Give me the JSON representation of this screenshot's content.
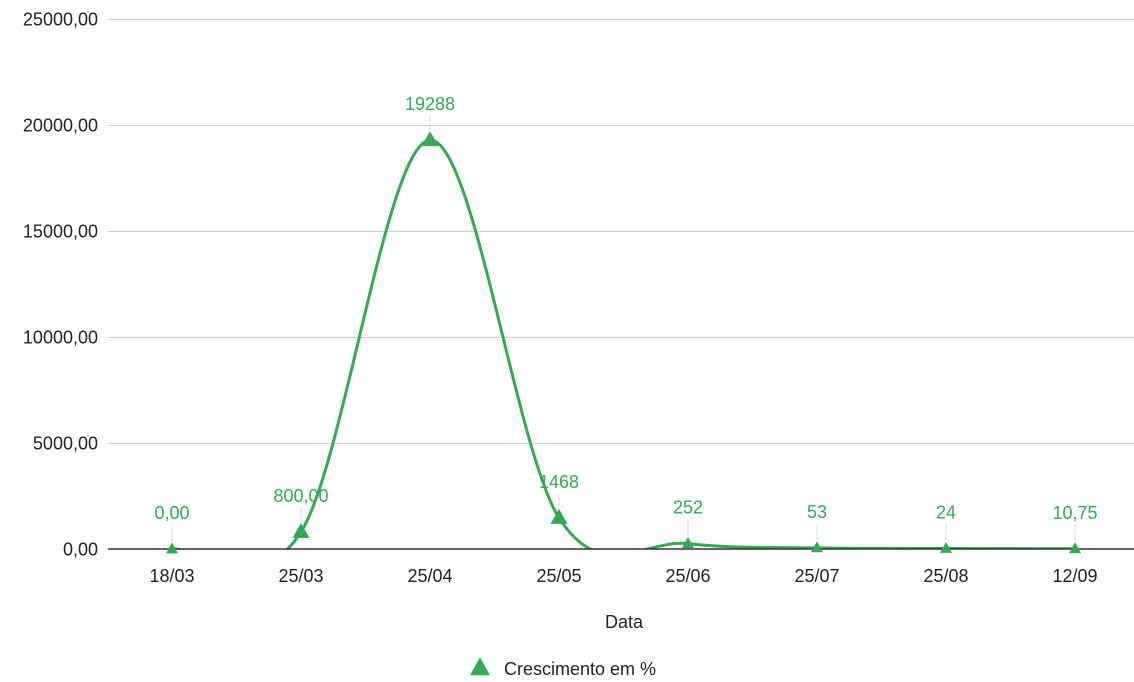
{
  "chart_data": {
    "type": "line",
    "title": "",
    "xlabel": "Data",
    "ylabel": "",
    "categories": [
      "18/03",
      "25/03",
      "25/04",
      "25/05",
      "25/06",
      "25/07",
      "25/08",
      "12/09"
    ],
    "series": [
      {
        "name": "Crescimento em %",
        "color": "#34a853",
        "marker": "triangle",
        "smooth": true,
        "values": [
          0,
          800,
          19288,
          1468,
          252,
          53,
          24,
          10.75
        ],
        "labels": [
          "0,00",
          "800,00",
          "19288",
          "1468",
          "252",
          "53",
          "24",
          "10,75"
        ]
      }
    ],
    "ylim": [
      0,
      25000
    ],
    "yticks": [
      0,
      5000,
      10000,
      15000,
      20000,
      25000
    ],
    "ytick_labels": [
      "0,00",
      "5000,00",
      "10000,00",
      "15000,00",
      "20000,00",
      "25000,00"
    ],
    "grid": true,
    "legend": "bottom-center"
  }
}
